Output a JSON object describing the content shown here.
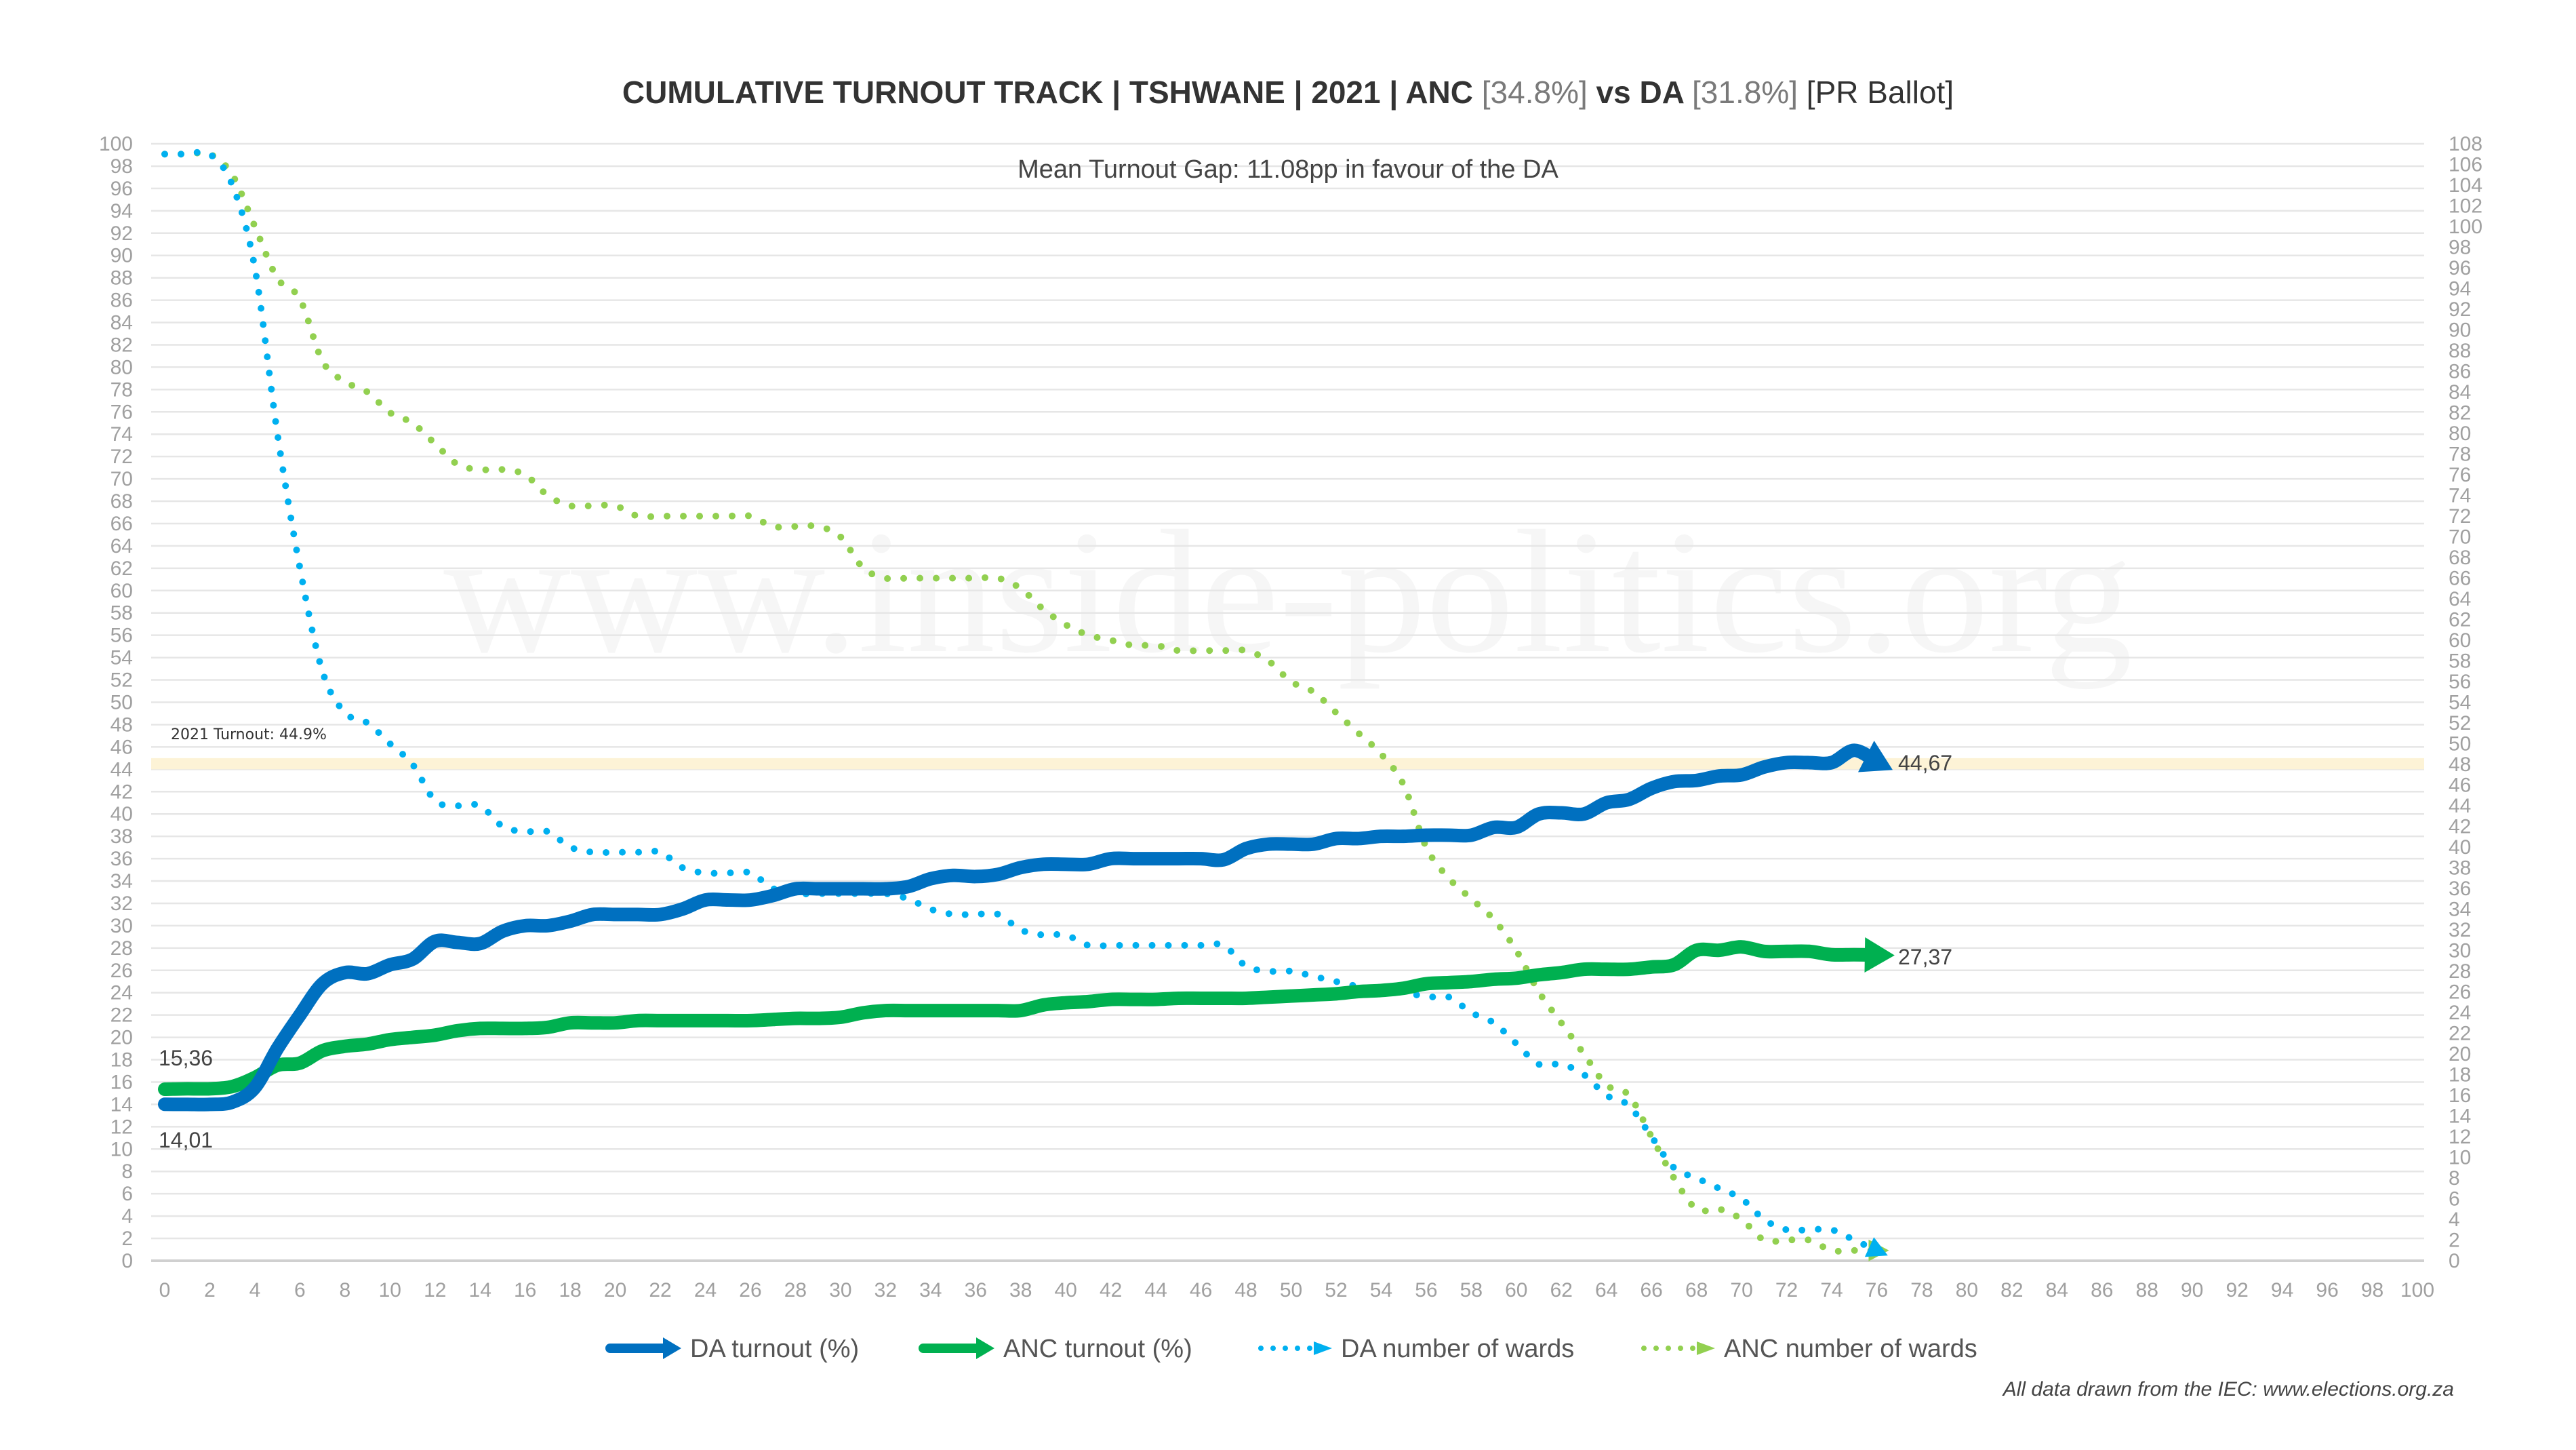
{
  "chart_data": {
    "type": "line",
    "title_parts": {
      "main": "CUMULATIVE TURNOUT TRACK | TSHWANE | 2021 | ANC ",
      "anc_pct": "[34.8%]",
      "vs": " vs DA ",
      "da_pct": "[31.8%]",
      "ballot": " [PR Ballot]"
    },
    "subtitle": "Mean Turnout Gap: 11.08pp in favour of the DA",
    "watermark": "www.inside-politics.org",
    "footnote": "All data drawn from the IEC: www.elections.org.za",
    "x": {
      "min": 0,
      "max": 100,
      "step": 2
    },
    "y_left": {
      "min": 0,
      "max": 100,
      "step": 2
    },
    "y_right": {
      "min": 0,
      "max": 108,
      "step": 2
    },
    "grid": true,
    "legend_position": "bottom",
    "reference_band": {
      "from": 44,
      "to": 45,
      "label": "2021 Turnout: 44.9%",
      "color": "#fdf3d6"
    },
    "annotations": {
      "da_start": "14,01",
      "anc_start": "15,36",
      "da_end": "44,67",
      "anc_end": "27,37"
    },
    "series": [
      {
        "name": "DA turnout (%)",
        "axis": "left",
        "style": "solid",
        "color": "#0070c0",
        "values": [
          14.01,
          14.0,
          14.0,
          14.2,
          15.5,
          19,
          22,
          24.8,
          25.8,
          25.7,
          26.5,
          27,
          28.6,
          28.5,
          28.4,
          29.5,
          30,
          30,
          30.4,
          31,
          31,
          31,
          31,
          31.5,
          32.3,
          32.3,
          32.3,
          32.7,
          33.3,
          33.3,
          33.3,
          33.3,
          33.3,
          33.5,
          34.2,
          34.5,
          34.4,
          34.6,
          35.2,
          35.5,
          35.5,
          35.5,
          36,
          36,
          36,
          36,
          36,
          35.9,
          36.9,
          37.3,
          37.3,
          37.3,
          37.8,
          37.8,
          38,
          38,
          38.1,
          38.1,
          38.1,
          38.8,
          38.8,
          40,
          40.1,
          40,
          41,
          41.3,
          42.3,
          42.9,
          43,
          43.4,
          43.5,
          44.2,
          44.6,
          44.6,
          44.6,
          45.7,
          44.67
        ]
      },
      {
        "name": "ANC turnout (%)",
        "axis": "left",
        "style": "solid",
        "color": "#00b050",
        "values": [
          15.36,
          15.4,
          15.4,
          15.6,
          16.4,
          17.5,
          17.7,
          18.8,
          19.2,
          19.4,
          19.8,
          20,
          20.2,
          20.6,
          20.8,
          20.8,
          20.8,
          20.9,
          21.3,
          21.3,
          21.3,
          21.5,
          21.5,
          21.5,
          21.5,
          21.5,
          21.5,
          21.6,
          21.7,
          21.7,
          21.8,
          22.2,
          22.4,
          22.4,
          22.4,
          22.4,
          22.4,
          22.4,
          22.4,
          22.9,
          23.1,
          23.2,
          23.4,
          23.4,
          23.4,
          23.5,
          23.5,
          23.5,
          23.5,
          23.6,
          23.7,
          23.8,
          23.9,
          24.1,
          24.2,
          24.4,
          24.8,
          24.9,
          25,
          25.2,
          25.3,
          25.6,
          25.8,
          26.1,
          26.1,
          26.1,
          26.3,
          26.5,
          27.8,
          27.8,
          28.1,
          27.7,
          27.7,
          27.7,
          27.4,
          27.4,
          27.37
        ]
      },
      {
        "name": "DA number of wards",
        "axis": "right",
        "style": "dotted",
        "color": "#00b0f0",
        "values": [
          107,
          107,
          107,
          104,
          96,
          80,
          67,
          57,
          53,
          52,
          50,
          48,
          44.5,
          44,
          44,
          42,
          41.5,
          41.5,
          40,
          39.5,
          39.5,
          39.5,
          39.5,
          38,
          37.5,
          37.5,
          37.5,
          36,
          35.5,
          35.5,
          35.5,
          35.5,
          35.5,
          35,
          34,
          33.5,
          33.5,
          33.5,
          32,
          31.5,
          31.5,
          30.5,
          30.5,
          30.5,
          30.5,
          30.5,
          30.5,
          30.5,
          28.5,
          28,
          28,
          27.5,
          27,
          26.5,
          26,
          26,
          25.5,
          25.5,
          24,
          23,
          21,
          19,
          19,
          18,
          16,
          15,
          12,
          9,
          8,
          7,
          6,
          4,
          3,
          3,
          3,
          2,
          1
        ]
      },
      {
        "name": "ANC number of wards",
        "axis": "right",
        "style": "dotted",
        "color": "#92d050",
        "values": [
          107,
          107,
          107,
          105,
          100,
          95,
          93,
          87,
          85,
          84,
          82,
          81,
          79,
          77,
          76.5,
          76.5,
          76,
          74,
          73,
          73,
          73,
          72,
          72,
          72,
          72,
          72,
          72,
          71,
          71,
          71,
          70,
          67,
          66,
          66,
          66,
          66,
          66,
          66,
          65,
          63,
          61.5,
          60.5,
          60,
          59.5,
          59.5,
          59,
          59,
          59,
          59,
          58,
          56,
          55,
          53,
          51,
          49,
          46,
          40,
          37,
          35,
          33,
          30,
          26,
          23,
          20,
          17,
          16,
          12,
          8,
          5,
          5,
          4,
          2,
          2,
          2,
          1,
          1,
          1
        ]
      }
    ]
  }
}
